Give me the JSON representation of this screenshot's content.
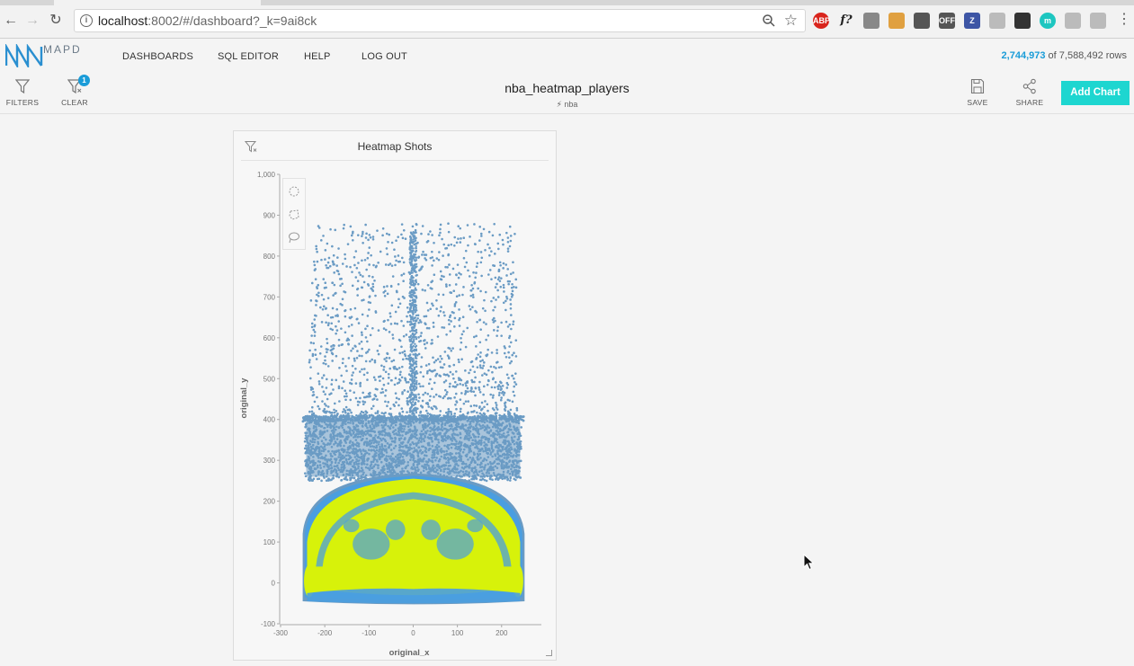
{
  "browser": {
    "url_host": "localhost",
    "url_path": ":8002/#/dashboard?_k=9ai8ck",
    "extensions": [
      {
        "name": "abp-extension-icon",
        "text": "ABP",
        "color": "#d9241c"
      },
      {
        "name": "function-extension-icon",
        "text": "f?",
        "color": "#ffffff"
      },
      {
        "name": "eyedropper-extension-icon",
        "text": "",
        "color": "#888888"
      },
      {
        "name": "bookmark-extension-icon",
        "text": "",
        "color": "#e0a040"
      },
      {
        "name": "password-extension-icon",
        "text": "",
        "color": "#555555"
      },
      {
        "name": "off-extension-icon",
        "text": "OFF",
        "color": "#555555"
      },
      {
        "name": "z-extension-icon",
        "text": "Z",
        "color": "#3d55a5"
      },
      {
        "name": "page-extension-icon",
        "text": "",
        "color": "#bbbbbb"
      },
      {
        "name": "pen-extension-icon",
        "text": "",
        "color": "#333333"
      },
      {
        "name": "m-extension-icon",
        "text": "m",
        "color": "#1dc6c0"
      },
      {
        "name": "skype-extension-icon",
        "text": "",
        "color": "#bbbbbb"
      },
      {
        "name": "chat-extension-icon",
        "text": "",
        "color": "#bbbbbb"
      }
    ]
  },
  "app": {
    "logo_text": "MAPD",
    "nav": [
      "DASHBOARDS",
      "SQL EDITOR",
      "HELP",
      "LOG OUT"
    ],
    "rows_filtered": "2,744,973",
    "rows_total": "of 7,588,492 rows"
  },
  "toolbar": {
    "filters_label": "FILTERS",
    "clear_label": "CLEAR",
    "clear_badge": "1",
    "dashboard_title": "nba_heatmap_players",
    "source": "nba",
    "save_label": "SAVE",
    "share_label": "SHARE",
    "add_chart_label": "Add Chart"
  },
  "chart": {
    "title": "Heatmap Shots",
    "xlabel": "original_x",
    "ylabel": "original_y"
  },
  "chart_data": {
    "type": "heatmap",
    "title": "Heatmap Shots",
    "xlabel": "original_x",
    "ylabel": "original_y",
    "xlim": [
      -300,
      290
    ],
    "ylim": [
      -100,
      1000
    ],
    "x_ticks": [
      -300,
      -200,
      -100,
      0,
      100,
      200
    ],
    "y_ticks": [
      -100,
      0,
      100,
      200,
      300,
      400,
      500,
      600,
      700,
      800,
      900,
      1000
    ],
    "y_tick_labels": [
      "-100",
      "0",
      "100",
      "200",
      "300",
      "400",
      "500",
      "600",
      "700",
      "800",
      "900",
      "1,000"
    ],
    "grid": false,
    "colors": {
      "sparse": "#6a9bc4",
      "medium": "#4a9ee0",
      "dense": "#d7f20a"
    },
    "density_regions": [
      {
        "level": "sparse",
        "x_range": [
          -245,
          250
        ],
        "y_range": [
          -50,
          880
        ],
        "description_value": "scattered points"
      },
      {
        "level": "dense",
        "x_range": [
          -250,
          250
        ],
        "y_range": [
          -40,
          260
        ],
        "description_value": "high density arc"
      }
    ]
  }
}
